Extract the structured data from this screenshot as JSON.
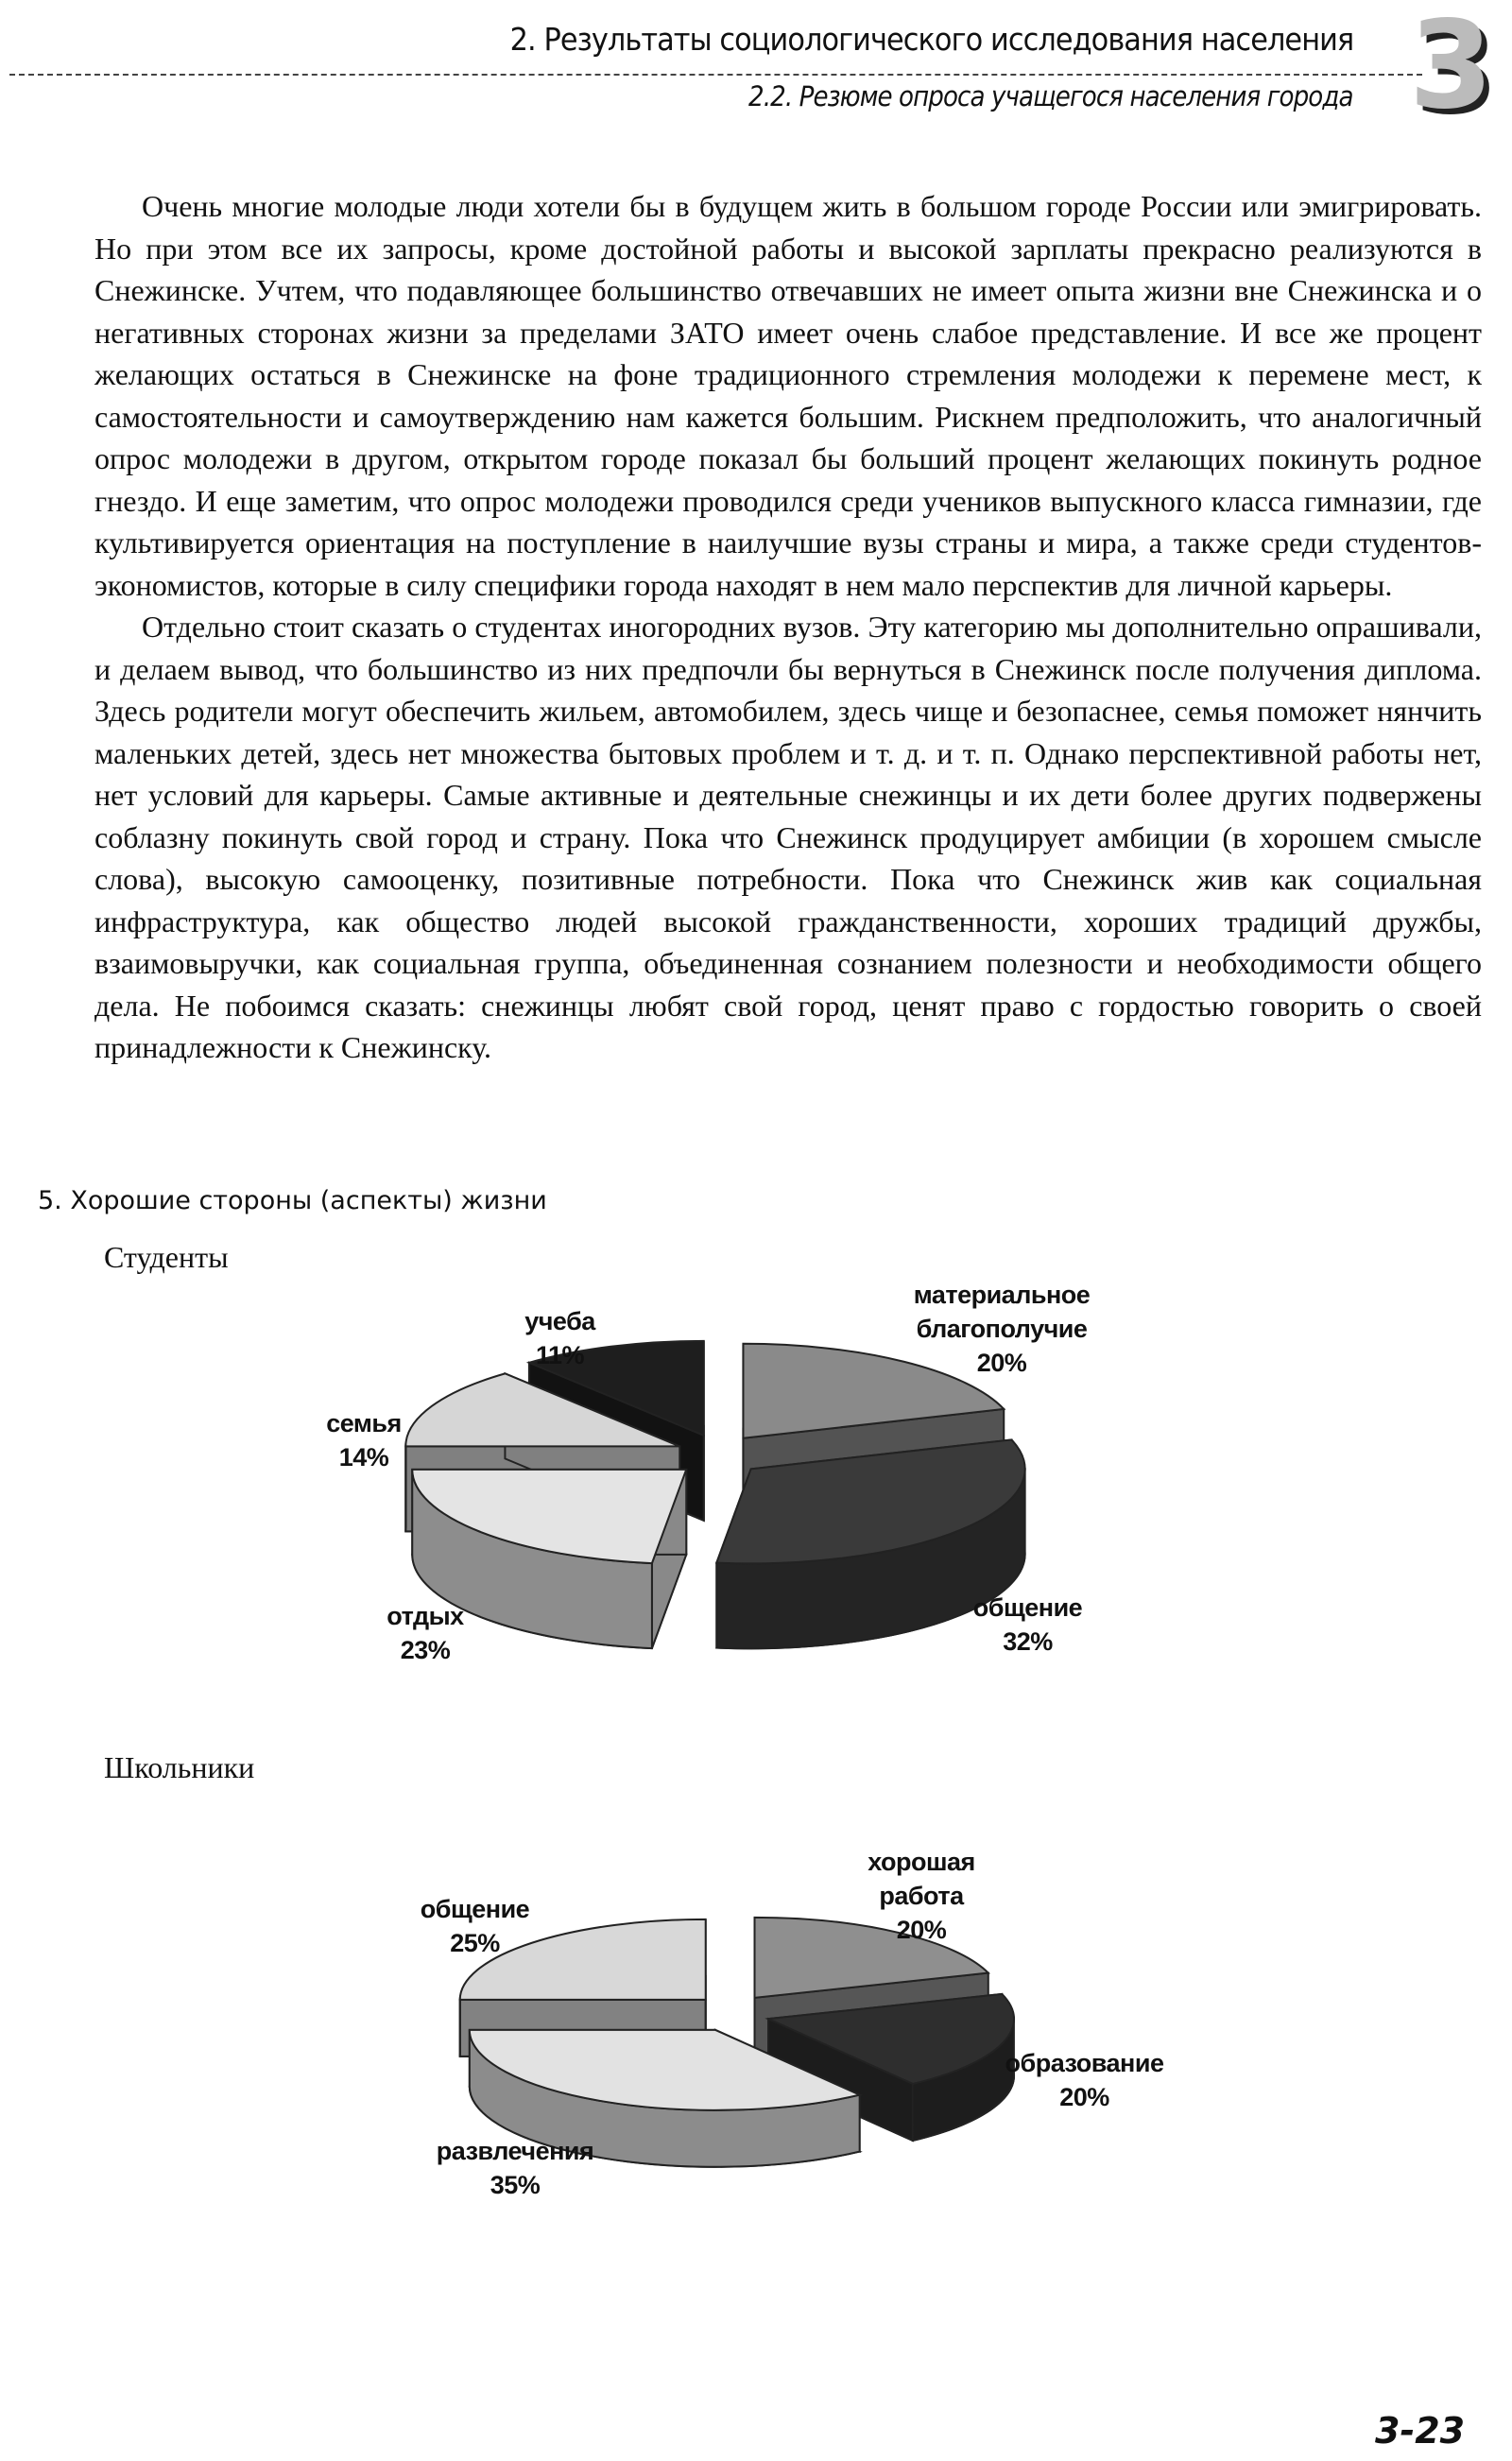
{
  "header": {
    "chapter": "2. Результаты социологического исследования населения",
    "section": "2.2. Резюме опроса учащегося населения города",
    "chapter_logo": "3"
  },
  "paragraphs": [
    "Очень многие молодые люди хотели бы в будущем жить в большом городе России или эмигрировать. Но при этом все их запросы, кроме достойной работы и высокой зарплаты прекрасно реализуются в Снежинске. Учтем, что подавляющее большинство отвечавших не имеет опыта жизни вне Снежинска и о негативных сторонах жизни за пределами ЗАТО имеет очень слабое представление. И все же процент желающих остаться в Снежинске на фоне традиционного стремления молодежи к перемене мест, к самостоятельности и самоутверждению нам кажется большим. Рискнем предположить, что аналогичный опрос молодежи в другом, открытом городе показал бы больший процент желающих покинуть родное гнездо. И еще заметим, что опрос молодежи проводился среди учеников выпускного класса гимназии, где культивируется ориентация на поступление в наилучшие вузы страны и мира, а также среди студентов-экономистов, которые в силу специфики города находят в нем мало перспектив для личной карьеры.",
    "Отдельно стоит сказать о студентах иногородних вузов. Эту категорию мы дополнительно опрашивали, и делаем вывод, что большинство из них предпочли бы вернуться в Снежинск после получения диплома. Здесь родители могут обеспечить жильем, автомобилем, здесь чище и безопаснее, семья поможет нянчить маленьких детей, здесь нет множества бытовых проблем и т. д. и т. п. Однако перспективной работы нет, нет условий для карьеры. Самые активные и деятельные снежинцы и их дети более других подвержены соблазну покинуть свой город и страну. Пока что Снежинск продуцирует амбиции (в хорошем смысле слова), высокую самооценку, позитивные потребности. Пока что Снежинск жив как социальная инфраструктура, как общество людей высокой гражданственности, хороших традиций дружбы, взаимовыручки, как социальная группа, объединенная сознанием полезности и необходимости общего дела. Не побоимся сказать: снежинцы любят свой город, ценят право с гордостью говорить о своей принадлежности к Снежинску."
  ],
  "figure_caption": "5. Хорошие стороны (аспекты) жизни",
  "chart_data": [
    {
      "type": "pie",
      "title": "Студенты",
      "style": "3d-exploded",
      "slices": [
        {
          "label": "материальное благополучие",
          "line1": "материальное",
          "line2": "благополучие",
          "value": 20,
          "pct": "20%",
          "color": "#8a8a8a"
        },
        {
          "label": "общение",
          "line1": "общение",
          "value": 32,
          "pct": "32%",
          "color": "#3a3a3a"
        },
        {
          "label": "отдых",
          "line1": "отдых",
          "value": 23,
          "pct": "23%",
          "color": "#e4e4e4"
        },
        {
          "label": "семья",
          "line1": "семья",
          "value": 14,
          "pct": "14%",
          "color": "#d6d6d6"
        },
        {
          "label": "учеба",
          "line1": "учеба",
          "value": 11,
          "pct": "11%",
          "color": "#1e1e1e"
        }
      ]
    },
    {
      "type": "pie",
      "title": "Школьники",
      "style": "3d-exploded",
      "slices": [
        {
          "label": "хорошая работа",
          "line1": "хорошая",
          "line2": "работа",
          "value": 20,
          "pct": "20%",
          "color": "#8f8f8f"
        },
        {
          "label": "образование",
          "line1": "образование",
          "value": 20,
          "pct": "20%",
          "color": "#2e2e2e"
        },
        {
          "label": "развлечения",
          "line1": "развлечения",
          "value": 35,
          "pct": "35%",
          "color": "#e2e2e2"
        },
        {
          "label": "общение",
          "line1": "общение",
          "value": 25,
          "pct": "25%",
          "color": "#d8d8d8"
        }
      ]
    }
  ],
  "page_number": "3-23"
}
